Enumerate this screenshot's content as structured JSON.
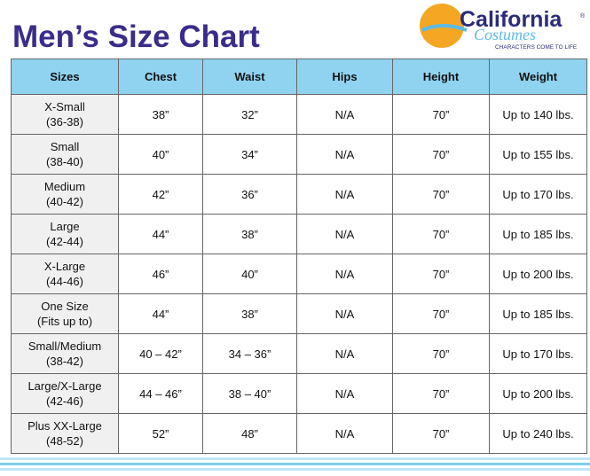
{
  "header": {
    "title": "Men’s Size Chart",
    "logo": {
      "name": "California",
      "script": "Costumes",
      "tagline": "CHARACTERS COME TO LIFE",
      "mark": "®"
    }
  },
  "table": {
    "columns": [
      "Sizes",
      "Chest",
      "Waist",
      "Hips",
      "Height",
      "Weight"
    ],
    "rows": [
      {
        "size": [
          "X-Small",
          "(36-38)"
        ],
        "cells": [
          "38”",
          "32”",
          "N/A",
          "70”",
          "Up to 140 lbs."
        ]
      },
      {
        "size": [
          "Small",
          "(38-40)"
        ],
        "cells": [
          "40”",
          "34”",
          "N/A",
          "70”",
          "Up to 155 lbs."
        ]
      },
      {
        "size": [
          "Medium",
          "(40-42)"
        ],
        "cells": [
          "42”",
          "36”",
          "N/A",
          "70”",
          "Up to 170 lbs."
        ]
      },
      {
        "size": [
          "Large",
          "(42-44)"
        ],
        "cells": [
          "44”",
          "38”",
          "N/A",
          "70”",
          "Up to 185 lbs."
        ]
      },
      {
        "size": [
          "X-Large",
          "(44-46)"
        ],
        "cells": [
          "46”",
          "40”",
          "N/A",
          "70”",
          "Up to 200 lbs."
        ]
      },
      {
        "size": [
          "One Size",
          "(Fits up to)"
        ],
        "cells": [
          "44”",
          "38”",
          "N/A",
          "70”",
          "Up to 185 lbs."
        ]
      },
      {
        "size": [
          "Small/Medium",
          "(38-42)"
        ],
        "cells": [
          "40 – 42”",
          "34 – 36”",
          "N/A",
          "70”",
          "Up to 170 lbs."
        ]
      },
      {
        "size": [
          "Large/X-Large",
          "(42-46)"
        ],
        "cells": [
          "44 – 46”",
          "38 – 40”",
          "N/A",
          "70”",
          "Up to 200 lbs."
        ]
      },
      {
        "size": [
          "Plus XX-Large",
          "(48-52)"
        ],
        "cells": [
          "52”",
          "48”",
          "N/A",
          "70”",
          "Up to 240 lbs."
        ]
      }
    ]
  }
}
